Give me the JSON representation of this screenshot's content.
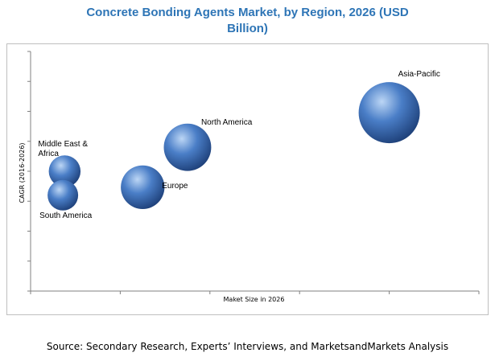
{
  "chart_data": {
    "type": "bubble",
    "title_lines": [
      "Concrete Bonding Agents Market, by Region, 2026 (USD",
      "Billion)"
    ],
    "xlabel": "Maket Size in 2026",
    "ylabel": "CAGR (2016-2026)",
    "grid": false,
    "x_ticks": 5,
    "y_ticks": 8,
    "points": [
      {
        "label_lines": [
          "Asia-Pacific"
        ],
        "x": 4.0,
        "y": 6.7,
        "size": 1.0
      },
      {
        "label_lines": [
          "North America"
        ],
        "x": 1.75,
        "y": 5.4,
        "size": 0.6
      },
      {
        "label_lines": [
          "Europe"
        ],
        "x": 1.25,
        "y": 3.9,
        "size": 0.51
      },
      {
        "label_lines": [
          "Middle East &",
          "Africa"
        ],
        "x": 0.38,
        "y": 4.5,
        "size": 0.27
      },
      {
        "label_lines": [
          "South America"
        ],
        "x": 0.36,
        "y": 3.6,
        "size": 0.25
      }
    ],
    "xlim": [
      0,
      5
    ],
    "ylim": [
      0,
      9
    ]
  },
  "source_text": "Source: Secondary Research, Experts’ Interviews, and MarketsandMarkets Analysis",
  "colors": {
    "title": "#2e75b6",
    "bubble_light": "#bcd6f5",
    "bubble_mid": "#4a7ec7",
    "bubble_dark": "#1d3f78"
  }
}
